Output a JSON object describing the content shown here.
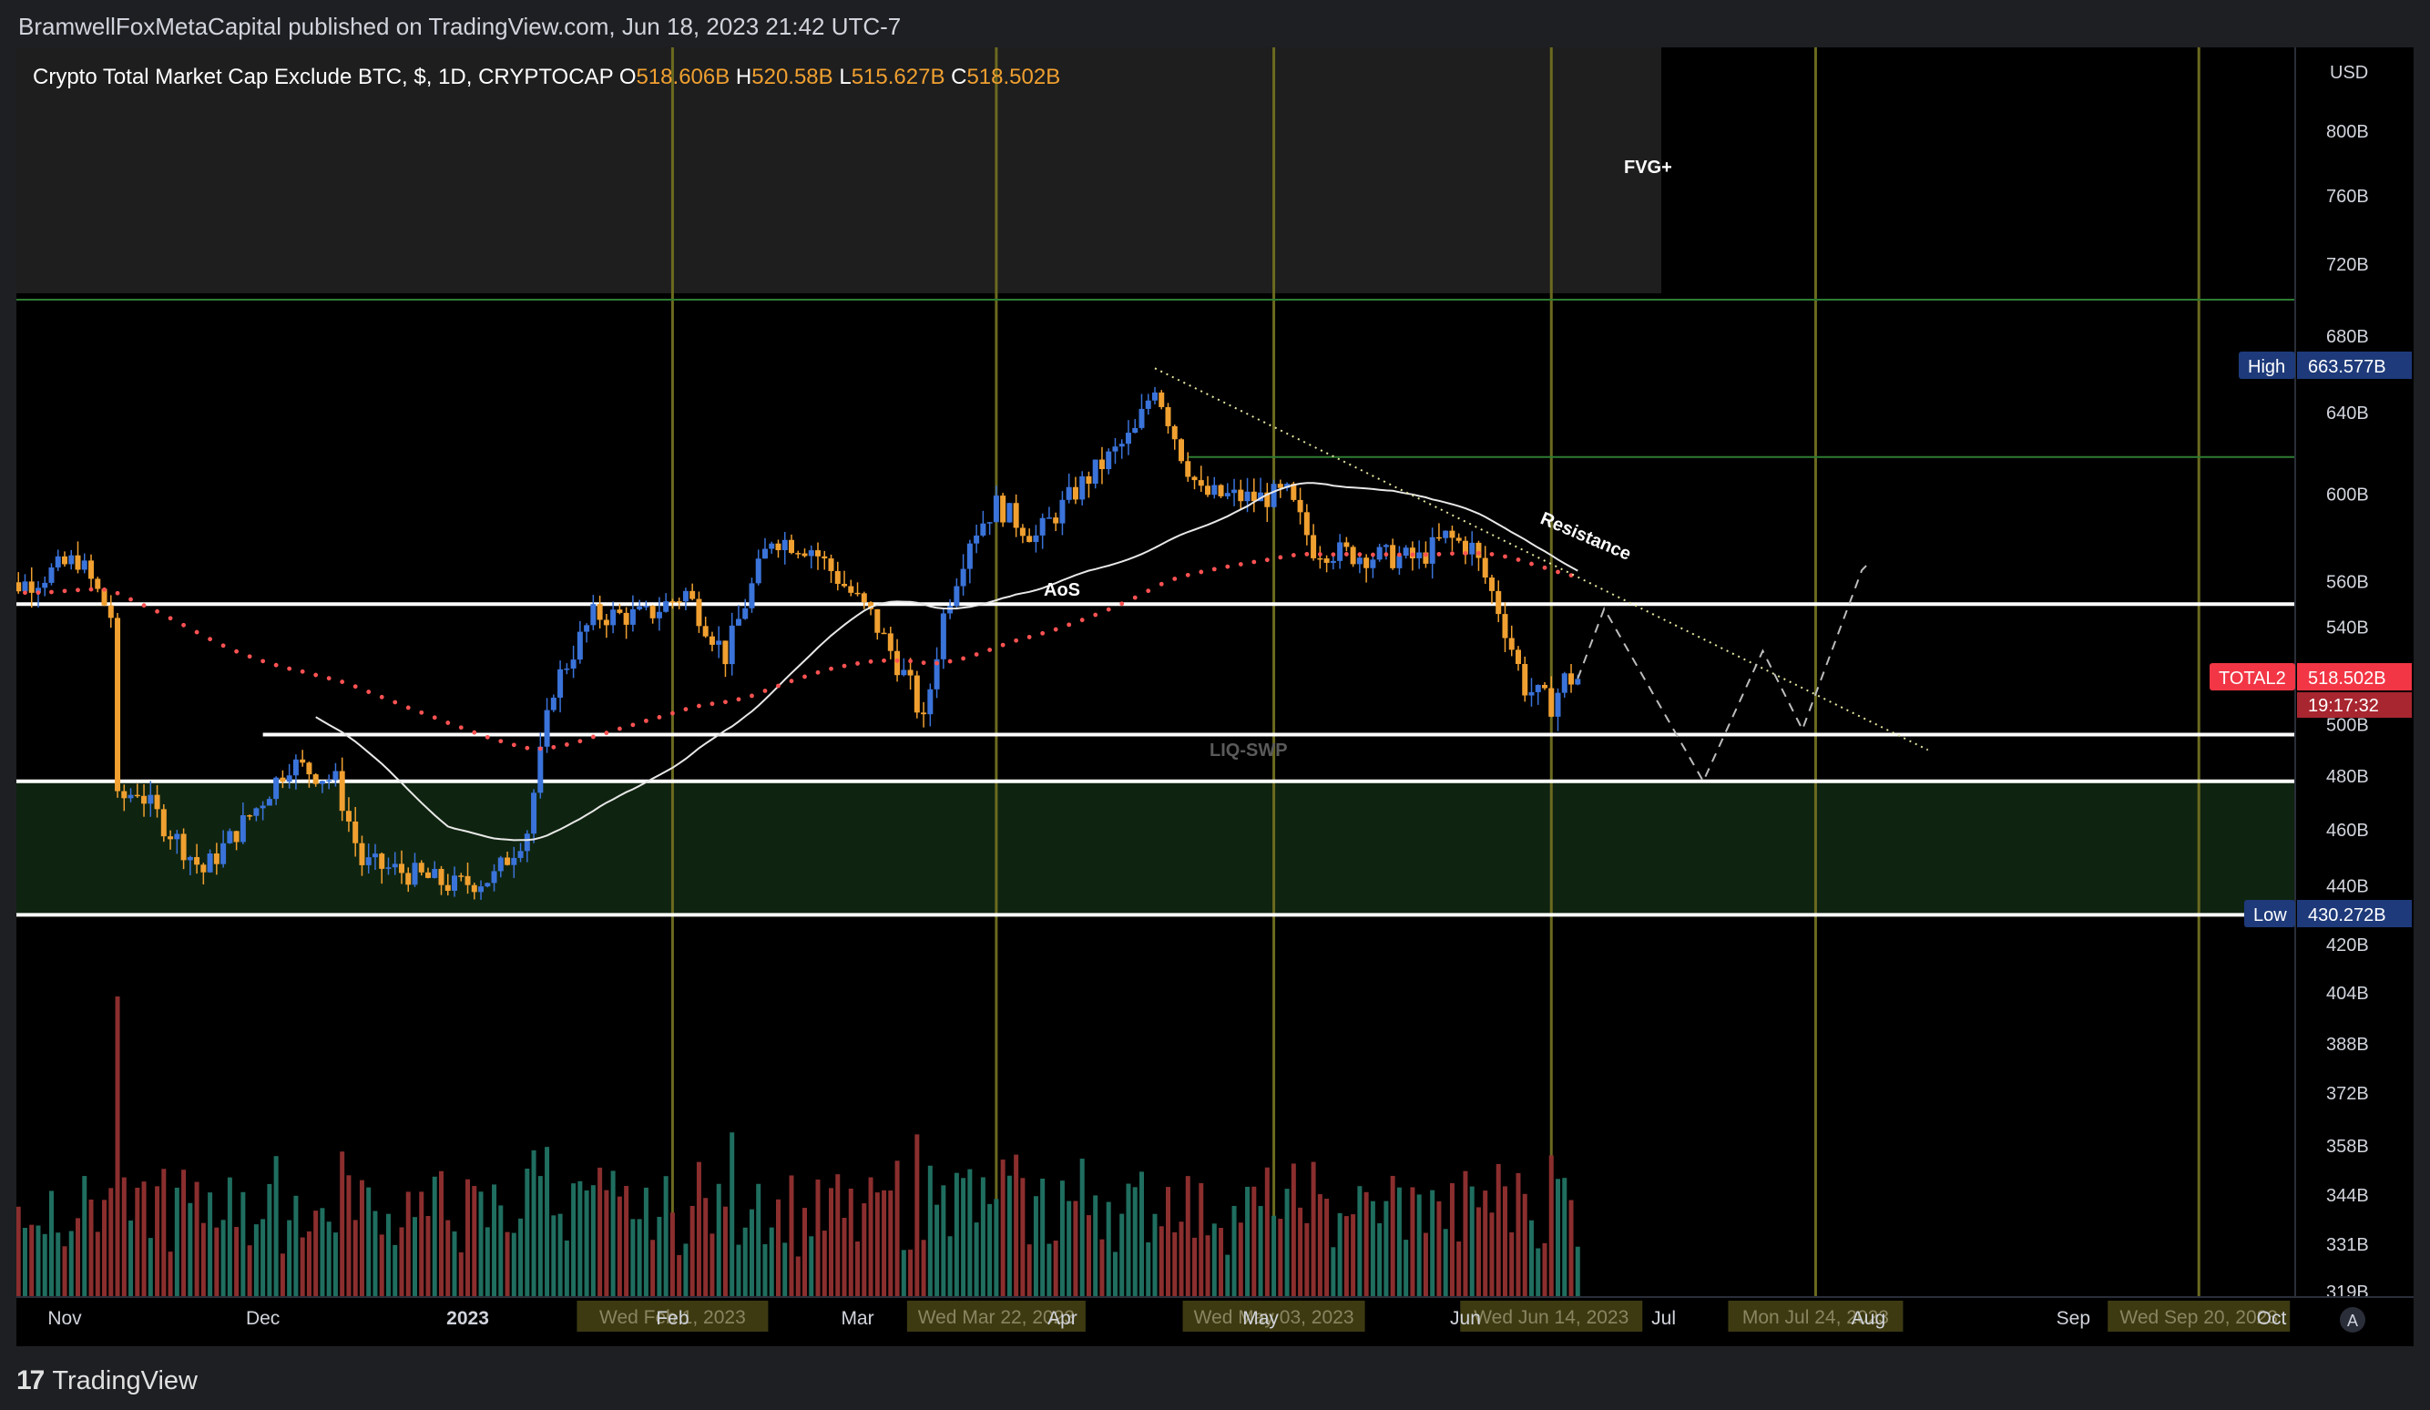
{
  "publisher_line": "BramwellFoxMetaCapital published on TradingView.com, Jun 18, 2023 21:42 UTC-7",
  "footer": {
    "brand": "TradingView"
  },
  "colors": {
    "up": "#3a73d9",
    "down": "#f0a030",
    "vol_up": "#1f6e5f",
    "vol_down": "#8b2e2e",
    "ema_red": "#ff5252",
    "ma_white": "#e8e8e8",
    "vline": "#6b6a1f",
    "green_line": "#2e7d32",
    "zone_green": "#0f2410",
    "fvg_gray": "#1e1e1e",
    "price_badge": "#f23645",
    "stat_badge": "#1e3a7a"
  },
  "chart_data": {
    "type": "candlestick",
    "symbol_title": "Crypto Total Market Cap Exclude BTC, $, 1D, CRYPTOCAP",
    "ohlc": {
      "o_label": "O",
      "o": "518.606B",
      "h_label": "H",
      "h": "520.58B",
      "l_label": "L",
      "l": "515.627B",
      "c_label": "C",
      "c": "518.502B"
    },
    "currency": "USD",
    "y_scale": "log",
    "price_ticks": [
      "800B",
      "760B",
      "720B",
      "680B",
      "640B",
      "600B",
      "560B",
      "540B",
      "500B",
      "480B",
      "460B",
      "440B",
      "420B"
    ],
    "volume_ticks": [
      "404B",
      "388B",
      "372B",
      "358B",
      "344B",
      "331B",
      "319B"
    ],
    "x_ticks": [
      "Nov",
      "Dec",
      "2023",
      "Feb",
      "Mar",
      "Apr",
      "May",
      "Jun",
      "Jul",
      "Aug",
      "Sep",
      "Oct"
    ],
    "date_markers": [
      "Wed Feb 1, 2023",
      "Wed Mar 22, 2023",
      "Wed May 03, 2023",
      "Wed Jun 14, 2023",
      "Mon Jul 24, 2023",
      "Wed Sep 20, 2023"
    ],
    "badges": {
      "high_label": "High",
      "high_value": "663.577B",
      "price_label": "TOTAL2",
      "price_value": "518.502B",
      "countdown": "19:17:32",
      "low_label": "Low",
      "low_value": "430.272B"
    },
    "annotations": [
      "FVG+",
      "AoS",
      "LIQ-SWP",
      "Resistance"
    ],
    "levels": {
      "aos": 550,
      "liq_swp": 496,
      "zone_top": 478,
      "zone_bottom": 430,
      "upper_green": 700,
      "range_high": 618
    },
    "close_path": [
      [
        "2022-10-20",
        555
      ],
      [
        "2022-10-27",
        560
      ],
      [
        "2022-11-03",
        570
      ],
      [
        "2022-11-08",
        545
      ],
      [
        "2022-11-09",
        470
      ],
      [
        "2022-11-12",
        475
      ],
      [
        "2022-11-16",
        462
      ],
      [
        "2022-11-22",
        445
      ],
      [
        "2022-11-30",
        468
      ],
      [
        "2022-12-05",
        485
      ],
      [
        "2022-12-12",
        478
      ],
      [
        "2022-12-16",
        448
      ],
      [
        "2022-12-22",
        445
      ],
      [
        "2022-12-30",
        440
      ],
      [
        "2023-01-05",
        443
      ],
      [
        "2023-01-10",
        460
      ],
      [
        "2023-01-14",
        515
      ],
      [
        "2023-01-20",
        545
      ],
      [
        "2023-01-28",
        545
      ],
      [
        "2023-02-03",
        555
      ],
      [
        "2023-02-09",
        528
      ],
      [
        "2023-02-16",
        580
      ],
      [
        "2023-02-22",
        575
      ],
      [
        "2023-03-03",
        545
      ],
      [
        "2023-03-09",
        515
      ],
      [
        "2023-03-11",
        500
      ],
      [
        "2023-03-14",
        545
      ],
      [
        "2023-03-18",
        580
      ],
      [
        "2023-03-22",
        595
      ],
      [
        "2023-03-28",
        580
      ],
      [
        "2023-04-04",
        605
      ],
      [
        "2023-04-12",
        630
      ],
      [
        "2023-04-15",
        655
      ],
      [
        "2023-04-19",
        620
      ],
      [
        "2023-04-22",
        600
      ],
      [
        "2023-04-30",
        598
      ],
      [
        "2023-05-05",
        600
      ],
      [
        "2023-05-09",
        575
      ],
      [
        "2023-05-15",
        572
      ],
      [
        "2023-05-25",
        570
      ],
      [
        "2023-05-29",
        580
      ],
      [
        "2023-06-02",
        575
      ],
      [
        "2023-06-05",
        555
      ],
      [
        "2023-06-06",
        548
      ],
      [
        "2023-06-10",
        515
      ],
      [
        "2023-06-14",
        508
      ],
      [
        "2023-06-16",
        518
      ],
      [
        "2023-06-18",
        518.5
      ]
    ],
    "projection": [
      [
        "2023-06-18",
        518.5
      ],
      [
        "2023-06-22",
        548
      ],
      [
        "2023-07-07",
        478
      ],
      [
        "2023-07-16",
        530
      ],
      [
        "2023-07-22",
        498
      ],
      [
        "2023-07-31",
        565
      ],
      [
        "2023-08-01",
        568
      ]
    ],
    "resistance_line": [
      [
        "2023-04-15",
        663
      ],
      [
        "2023-08-10",
        490
      ]
    ]
  }
}
